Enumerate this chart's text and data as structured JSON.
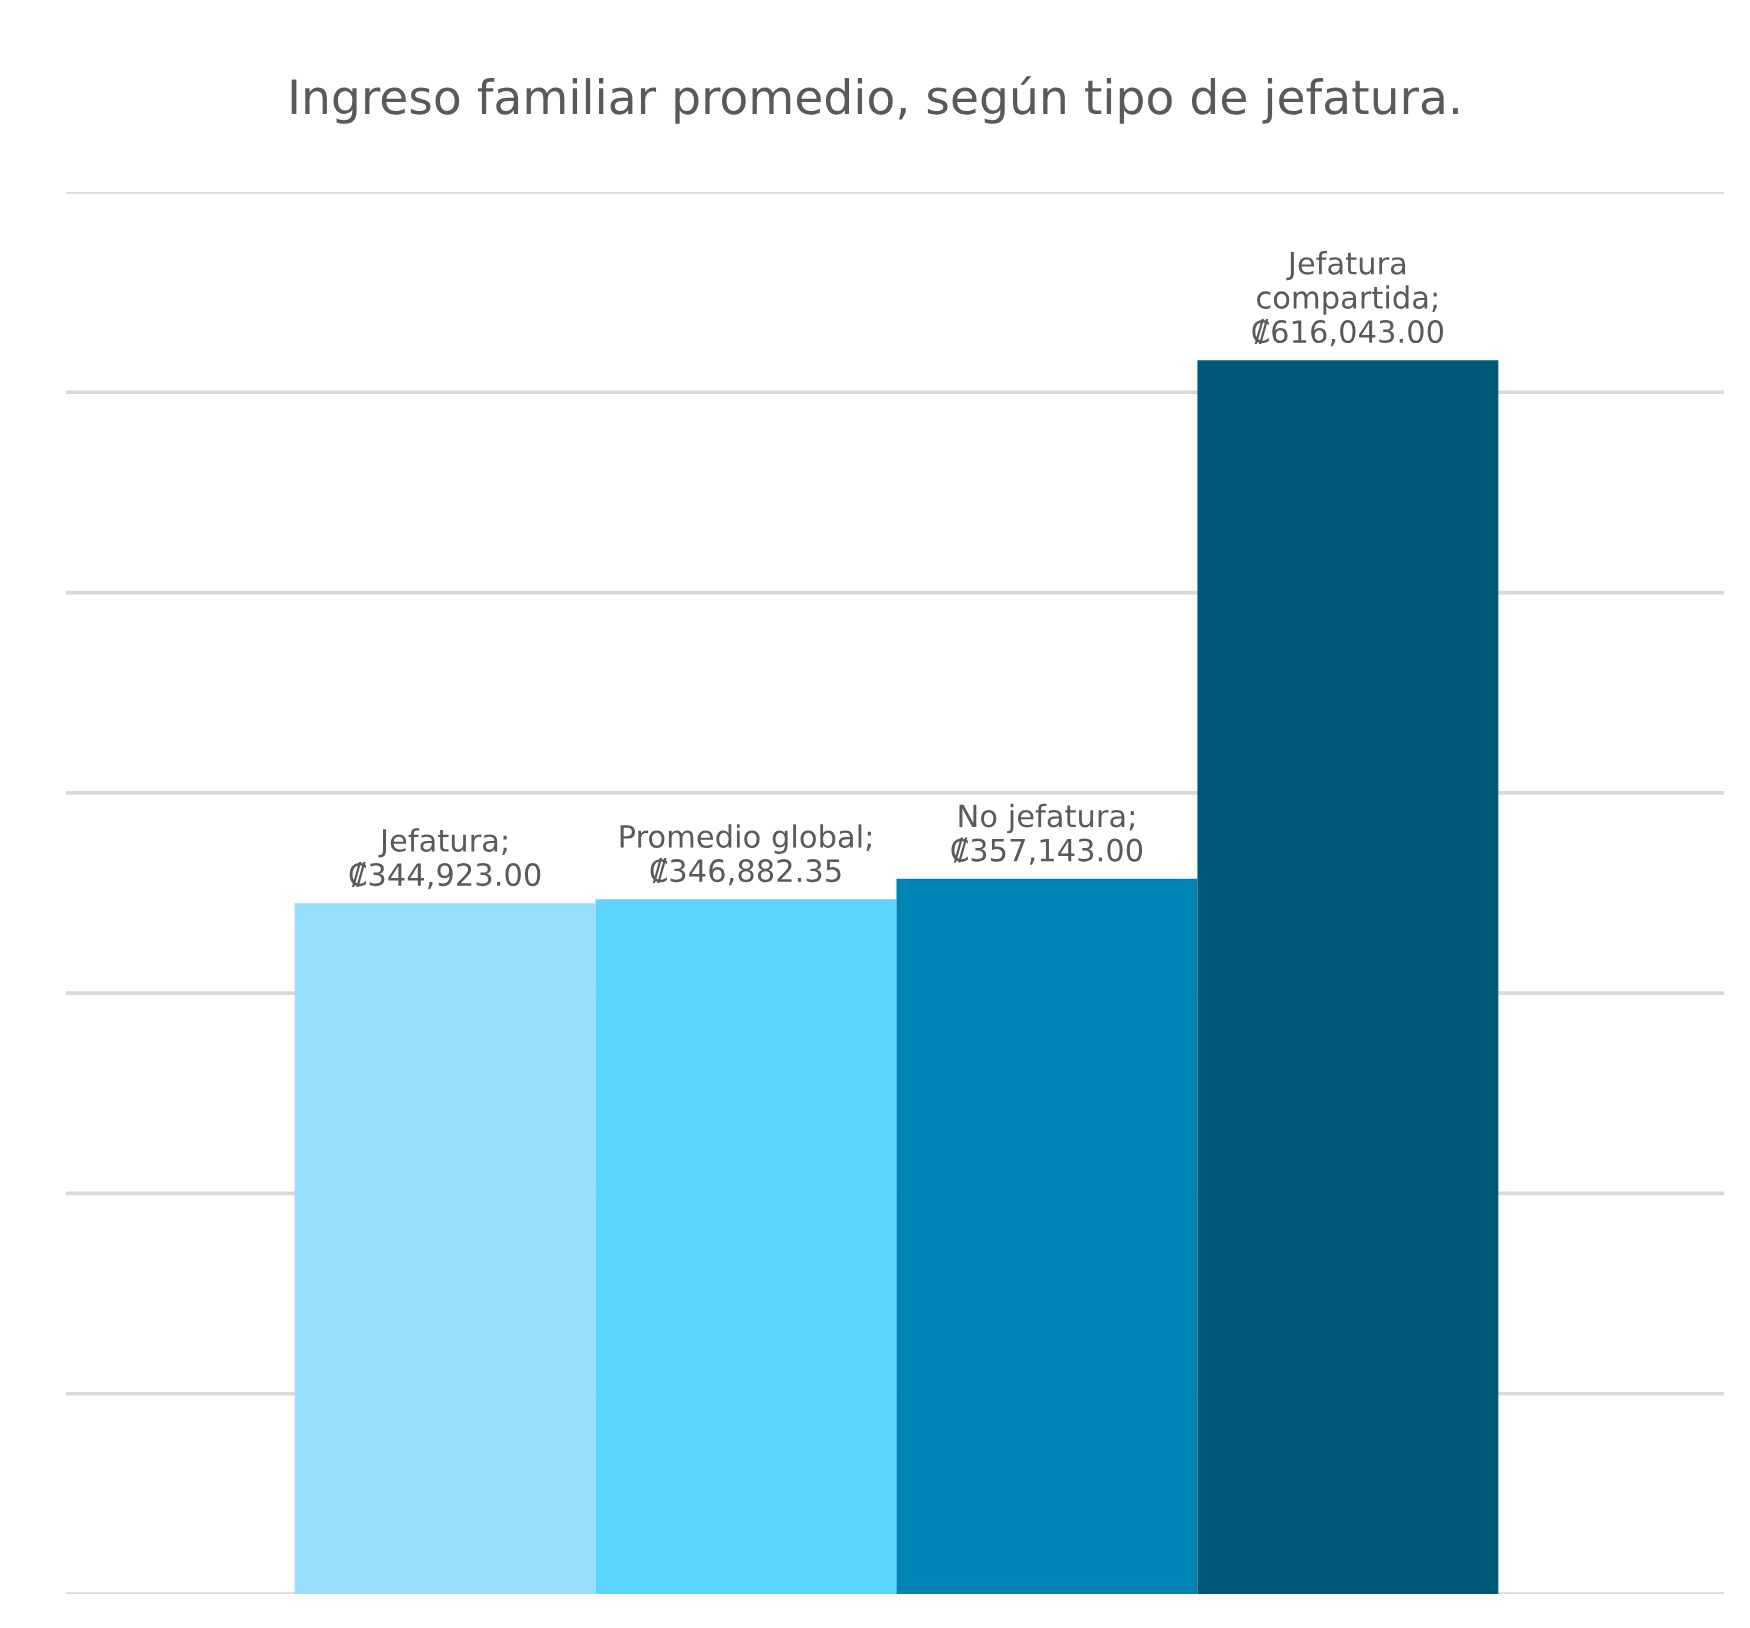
{
  "chart_data": {
    "type": "bar",
    "title": "Ingreso familiar promedio, según tipo de jefatura.",
    "categories": [
      null,
      null,
      null,
      null
    ],
    "values": [
      344923.0,
      346882.35,
      357143.0,
      616043.0
    ],
    "colors": [
      "#97dffc",
      "#5dd4fe",
      "#0084b5",
      "#005878"
    ],
    "value_labels": [
      "Jefatura;\n₡344,923.00",
      "Promedio global;\n₡346,882.35",
      "No jefatura;\n₡357,143.00",
      "Jefatura\ncompartida;\n₡616,043.00"
    ],
    "ylim": [
      0,
      700000
    ],
    "yticks": [
      {
        "value": 0,
        "label": null
      },
      {
        "value": 100000,
        "label": null
      },
      {
        "value": 200000,
        "label": null
      },
      {
        "value": 300000,
        "label": null
      },
      {
        "value": 400000,
        "label": null
      },
      {
        "value": 500000,
        "label": null
      },
      {
        "value": 600000,
        "label": null
      },
      {
        "value": 700000,
        "label": null
      }
    ],
    "grid": "y"
  }
}
